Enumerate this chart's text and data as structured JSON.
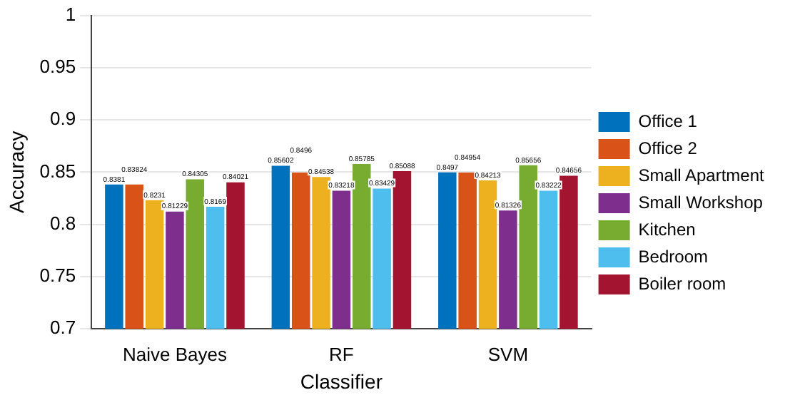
{
  "chart_data": {
    "type": "bar",
    "xlabel": "Classifier",
    "ylabel": "Accuracy",
    "categories": [
      "Naive Bayes",
      "RF",
      "SVM"
    ],
    "series": [
      {
        "name": "Office 1",
        "color": "#0072bd",
        "values": [
          0.8381,
          0.85602,
          0.8497
        ]
      },
      {
        "name": "Office 2",
        "color": "#d95319",
        "values": [
          0.83824,
          0.8496,
          0.84954
        ]
      },
      {
        "name": "Small Apartment",
        "color": "#edb120",
        "values": [
          0.8231,
          0.84538,
          0.84213
        ]
      },
      {
        "name": "Small Workshop",
        "color": "#7e2f8e",
        "values": [
          0.81229,
          0.83218,
          0.81326
        ]
      },
      {
        "name": "Kitchen",
        "color": "#77ac30",
        "values": [
          0.84305,
          0.85785,
          0.85656
        ]
      },
      {
        "name": "Bedroom",
        "color": "#4dbeee",
        "values": [
          0.8169,
          0.83429,
          0.83222
        ]
      },
      {
        "name": "Boiler room",
        "color": "#a2142f",
        "values": [
          0.84021,
          0.85088,
          0.84656
        ]
      }
    ],
    "ylim": [
      0.7,
      1
    ],
    "yticks": [
      0.7,
      0.75,
      0.8,
      0.85,
      0.9,
      0.95,
      1
    ],
    "grid": "y",
    "legend": "right",
    "data_labels": true
  }
}
